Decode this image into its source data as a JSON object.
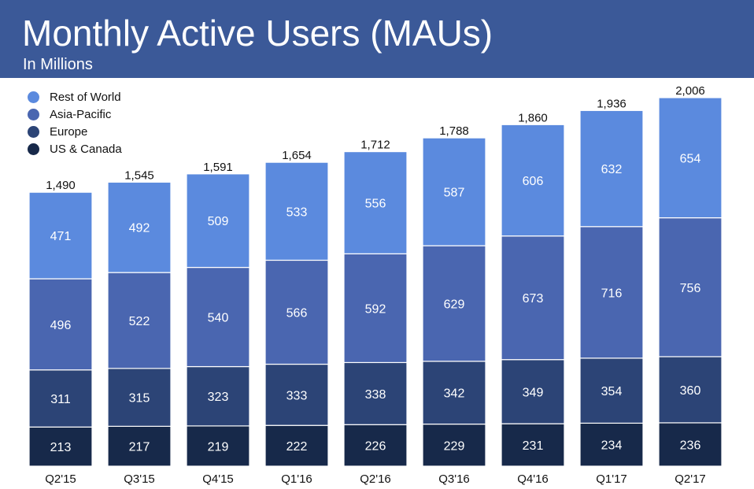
{
  "header": {
    "title": "Monthly Active Users (MAUs)",
    "subtitle": "In Millions"
  },
  "colors": {
    "header_bg": "#3b5998",
    "rest_of_world": "#5b8ade",
    "asia_pacific": "#4a66b0",
    "europe": "#2c4476",
    "us_canada": "#17294a"
  },
  "chart_data": {
    "type": "bar",
    "stacked": true,
    "title": "Monthly Active Users (MAUs)",
    "subtitle": "In Millions",
    "xlabel": "",
    "ylabel": "",
    "categories": [
      "Q2'15",
      "Q3'15",
      "Q4'15",
      "Q1'16",
      "Q2'16",
      "Q3'16",
      "Q4'16",
      "Q1'17",
      "Q2'17"
    ],
    "totals": [
      "1,490",
      "1,545",
      "1,591",
      "1,654",
      "1,712",
      "1,788",
      "1,860",
      "1,936",
      "2,006"
    ],
    "series": [
      {
        "name": "US & Canada",
        "color": "#17294a",
        "values": [
          213,
          217,
          219,
          222,
          226,
          229,
          231,
          234,
          236
        ]
      },
      {
        "name": "Europe",
        "color": "#2c4476",
        "values": [
          311,
          315,
          323,
          333,
          338,
          342,
          349,
          354,
          360
        ]
      },
      {
        "name": "Asia-Pacific",
        "color": "#4a66b0",
        "values": [
          496,
          522,
          540,
          566,
          592,
          629,
          673,
          716,
          756
        ]
      },
      {
        "name": "Rest of World",
        "color": "#5b8ade",
        "values": [
          471,
          492,
          509,
          533,
          556,
          587,
          606,
          632,
          654
        ]
      }
    ],
    "legend_order": [
      "Rest of World",
      "Asia-Pacific",
      "Europe",
      "US & Canada"
    ],
    "legend_position": "top-left",
    "grid": false,
    "y_axis_visible": false
  }
}
